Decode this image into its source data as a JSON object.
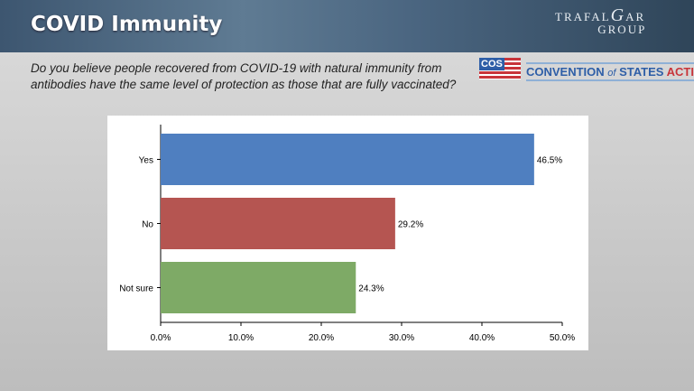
{
  "header": {
    "title": "COVID Immunity",
    "logo": "TRAFALGAR GROUP"
  },
  "question": "Do you believe people recovered from COVID-19 with natural immunity from antibodies have the same level of protection as those that are fully vaccinated?",
  "sponsor": {
    "badge": "COS",
    "name_a": "CONVENTION",
    "name_of": "of",
    "name_b": "STATES",
    "name_c": "ACTION"
  },
  "chart_data": {
    "type": "bar",
    "orientation": "horizontal",
    "categories": [
      "Yes",
      "No",
      "Not sure"
    ],
    "values": [
      46.5,
      29.2,
      24.3
    ],
    "labels": [
      "46.5%",
      "29.2%",
      "24.3%"
    ],
    "colors": [
      "#4f7fc0",
      "#b55551",
      "#7eaa66"
    ],
    "xlim": [
      0,
      50
    ],
    "xticks": [
      "0.0%",
      "10.0%",
      "20.0%",
      "30.0%",
      "40.0%",
      "50.0%"
    ],
    "title": "",
    "xlabel": "",
    "ylabel": "",
    "grid": false
  }
}
